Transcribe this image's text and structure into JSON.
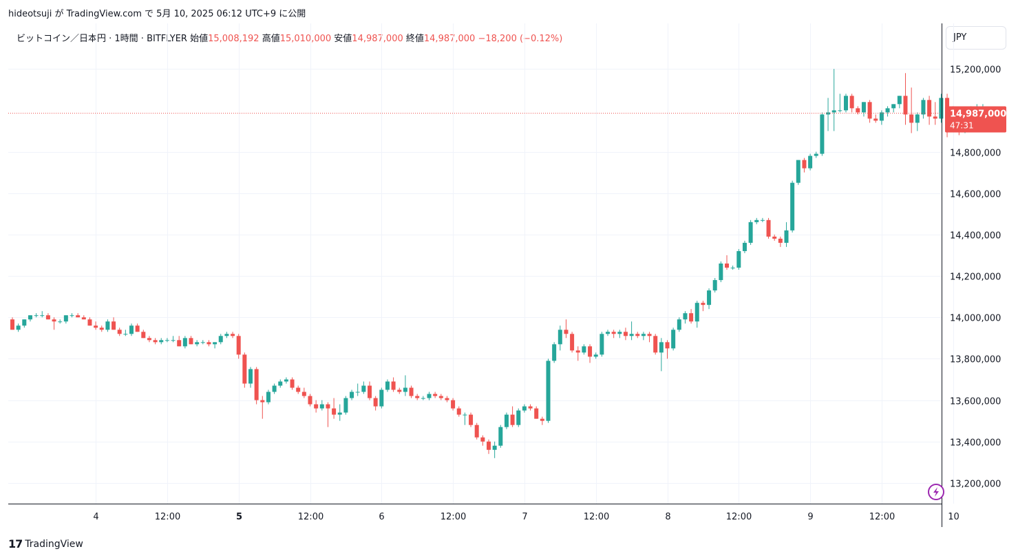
{
  "header": {
    "published_line": "hideotsuji が TradingView.com で 5月 10, 2025 06:12 UTC+9 に公開"
  },
  "legend": {
    "symbol": "ビットコイン／日本円 · 1時間 · BITFLYER",
    "open_label": "始値",
    "open_value": "15,008,192",
    "high_label": "高値",
    "high_value": "15,010,000",
    "low_label": "安値",
    "low_value": "14,987,000",
    "close_label": "終値",
    "close_value": "14,987,000",
    "change": "−18,200 (−0.12%)"
  },
  "currency_button": "JPY",
  "price_badge": {
    "price": "14,987,000",
    "countdown": "47:31"
  },
  "footer": {
    "logo": "17",
    "brand": "TradingView"
  },
  "colors": {
    "up": "#26a69a",
    "down": "#ef5350",
    "grid": "#f0f3fa",
    "axis": "#131722"
  },
  "chart_data": {
    "type": "candlestick",
    "y_ticks": [
      "15,200,000",
      "14,800,000",
      "14,600,000",
      "14,400,000",
      "14,200,000",
      "14,000,000",
      "13,800,000",
      "13,600,000",
      "13,400,000",
      "13,200,000"
    ],
    "y_tick_values": [
      15200000,
      14800000,
      14600000,
      14400000,
      14200000,
      14000000,
      13800000,
      13600000,
      13400000,
      13200000
    ],
    "ylim": [
      13100000,
      15420000
    ],
    "x_ticks": [
      {
        "label": "4",
        "pos": 14,
        "bold": false
      },
      {
        "label": "12:00",
        "pos": 26,
        "bold": false
      },
      {
        "label": "5",
        "pos": 38,
        "bold": true
      },
      {
        "label": "12:00",
        "pos": 50,
        "bold": false
      },
      {
        "label": "6",
        "pos": 62,
        "bold": false
      },
      {
        "label": "12:00",
        "pos": 74,
        "bold": false
      },
      {
        "label": "7",
        "pos": 86,
        "bold": false
      },
      {
        "label": "12:00",
        "pos": 98,
        "bold": false
      },
      {
        "label": "8",
        "pos": 110,
        "bold": false
      },
      {
        "label": "12:00",
        "pos": 122,
        "bold": false
      },
      {
        "label": "9",
        "pos": 134,
        "bold": false
      },
      {
        "label": "12:00",
        "pos": 146,
        "bold": false
      },
      {
        "label": "10",
        "pos": 158,
        "bold": false
      }
    ],
    "last_price": 14987000,
    "candles": [
      [
        13990000,
        14000000,
        13940000,
        13940000
      ],
      [
        13940000,
        13970000,
        13930000,
        13960000
      ],
      [
        13960000,
        13990000,
        13950000,
        13990000
      ],
      [
        13990000,
        14010000,
        13980000,
        14010000
      ],
      [
        14010000,
        14020000,
        14000000,
        14010000
      ],
      [
        14010000,
        14030000,
        14000000,
        14010000
      ],
      [
        14010000,
        14020000,
        13990000,
        13990000
      ],
      [
        13990000,
        14000000,
        13940000,
        13980000
      ],
      [
        13980000,
        13990000,
        13970000,
        13980000
      ],
      [
        13980000,
        14010000,
        13970000,
        14010000
      ],
      [
        14010000,
        14020000,
        14000000,
        14010000
      ],
      [
        14010000,
        14020000,
        14000000,
        14000000
      ],
      [
        14000000,
        14010000,
        13990000,
        13990000
      ],
      [
        13990000,
        14000000,
        13960000,
        13960000
      ],
      [
        13960000,
        13980000,
        13940000,
        13950000
      ],
      [
        13950000,
        13960000,
        13930000,
        13940000
      ],
      [
        13940000,
        13990000,
        13930000,
        13980000
      ],
      [
        13980000,
        14000000,
        13940000,
        13940000
      ],
      [
        13940000,
        13950000,
        13910000,
        13920000
      ],
      [
        13920000,
        13940000,
        13910000,
        13920000
      ],
      [
        13920000,
        13970000,
        13910000,
        13960000
      ],
      [
        13960000,
        13970000,
        13930000,
        13930000
      ],
      [
        13930000,
        13940000,
        13900000,
        13900000
      ],
      [
        13900000,
        13910000,
        13880000,
        13890000
      ],
      [
        13890000,
        13900000,
        13870000,
        13880000
      ],
      [
        13880000,
        13900000,
        13870000,
        13890000
      ],
      [
        13890000,
        13900000,
        13880000,
        13890000
      ],
      [
        13890000,
        13910000,
        13880000,
        13890000
      ],
      [
        13890000,
        13910000,
        13860000,
        13860000
      ],
      [
        13860000,
        13910000,
        13850000,
        13900000
      ],
      [
        13900000,
        13910000,
        13870000,
        13870000
      ],
      [
        13870000,
        13890000,
        13860000,
        13880000
      ],
      [
        13880000,
        13890000,
        13870000,
        13880000
      ],
      [
        13880000,
        13890000,
        13860000,
        13870000
      ],
      [
        13870000,
        13880000,
        13850000,
        13880000
      ],
      [
        13880000,
        13920000,
        13870000,
        13910000
      ],
      [
        13910000,
        13930000,
        13900000,
        13920000
      ],
      [
        13920000,
        13930000,
        13900000,
        13910000
      ],
      [
        13910000,
        13920000,
        13800000,
        13820000
      ],
      [
        13820000,
        13830000,
        13660000,
        13680000
      ],
      [
        13680000,
        13760000,
        13660000,
        13750000
      ],
      [
        13750000,
        13760000,
        13580000,
        13600000
      ],
      [
        13600000,
        13620000,
        13510000,
        13590000
      ],
      [
        13590000,
        13650000,
        13580000,
        13640000
      ],
      [
        13640000,
        13680000,
        13630000,
        13670000
      ],
      [
        13670000,
        13700000,
        13660000,
        13690000
      ],
      [
        13690000,
        13710000,
        13680000,
        13700000
      ],
      [
        13700000,
        13710000,
        13650000,
        13660000
      ],
      [
        13660000,
        13670000,
        13630000,
        13640000
      ],
      [
        13640000,
        13660000,
        13610000,
        13620000
      ],
      [
        13620000,
        13630000,
        13570000,
        13580000
      ],
      [
        13580000,
        13600000,
        13540000,
        13560000
      ],
      [
        13560000,
        13600000,
        13550000,
        13580000
      ],
      [
        13580000,
        13590000,
        13470000,
        13560000
      ],
      [
        13560000,
        13610000,
        13510000,
        13530000
      ],
      [
        13530000,
        13580000,
        13500000,
        13540000
      ],
      [
        13540000,
        13620000,
        13530000,
        13610000
      ],
      [
        13610000,
        13650000,
        13600000,
        13640000
      ],
      [
        13640000,
        13680000,
        13620000,
        13640000
      ],
      [
        13640000,
        13690000,
        13630000,
        13670000
      ],
      [
        13670000,
        13690000,
        13600000,
        13610000
      ],
      [
        13610000,
        13620000,
        13550000,
        13570000
      ],
      [
        13570000,
        13660000,
        13560000,
        13650000
      ],
      [
        13650000,
        13700000,
        13640000,
        13690000
      ],
      [
        13690000,
        13710000,
        13640000,
        13650000
      ],
      [
        13650000,
        13660000,
        13630000,
        13640000
      ],
      [
        13640000,
        13720000,
        13620000,
        13660000
      ],
      [
        13660000,
        13670000,
        13610000,
        13620000
      ],
      [
        13620000,
        13630000,
        13600000,
        13610000
      ],
      [
        13610000,
        13620000,
        13600000,
        13610000
      ],
      [
        13610000,
        13640000,
        13600000,
        13630000
      ],
      [
        13630000,
        13640000,
        13610000,
        13620000
      ],
      [
        13620000,
        13630000,
        13600000,
        13610000
      ],
      [
        13610000,
        13620000,
        13590000,
        13600000
      ],
      [
        13600000,
        13610000,
        13550000,
        13560000
      ],
      [
        13560000,
        13570000,
        13520000,
        13530000
      ],
      [
        13530000,
        13540000,
        13480000,
        13530000
      ],
      [
        13530000,
        13540000,
        13470000,
        13480000
      ],
      [
        13480000,
        13490000,
        13410000,
        13420000
      ],
      [
        13420000,
        13430000,
        13380000,
        13400000
      ],
      [
        13400000,
        13410000,
        13340000,
        13360000
      ],
      [
        13360000,
        13400000,
        13320000,
        13380000
      ],
      [
        13380000,
        13480000,
        13370000,
        13470000
      ],
      [
        13470000,
        13540000,
        13460000,
        13530000
      ],
      [
        13530000,
        13570000,
        13470000,
        13480000
      ],
      [
        13480000,
        13560000,
        13470000,
        13550000
      ],
      [
        13550000,
        13580000,
        13540000,
        13570000
      ],
      [
        13570000,
        13580000,
        13550000,
        13560000
      ],
      [
        13560000,
        13570000,
        13510000,
        13510000
      ],
      [
        13510000,
        13520000,
        13480000,
        13500000
      ],
      [
        13500000,
        13800000,
        13490000,
        13790000
      ],
      [
        13790000,
        13880000,
        13780000,
        13870000
      ],
      [
        13870000,
        13960000,
        13840000,
        13940000
      ],
      [
        13940000,
        13990000,
        13900000,
        13920000
      ],
      [
        13920000,
        13930000,
        13830000,
        13840000
      ],
      [
        13840000,
        13860000,
        13790000,
        13830000
      ],
      [
        13830000,
        13870000,
        13820000,
        13860000
      ],
      [
        13860000,
        13870000,
        13780000,
        13810000
      ],
      [
        13810000,
        13830000,
        13800000,
        13820000
      ],
      [
        13820000,
        13930000,
        13810000,
        13920000
      ],
      [
        13920000,
        13940000,
        13910000,
        13930000
      ],
      [
        13930000,
        13940000,
        13900000,
        13920000
      ],
      [
        13920000,
        13940000,
        13900000,
        13930000
      ],
      [
        13930000,
        13950000,
        13890000,
        13910000
      ],
      [
        13910000,
        13980000,
        13890000,
        13920000
      ],
      [
        13920000,
        13930000,
        13900000,
        13910000
      ],
      [
        13910000,
        13930000,
        13890000,
        13920000
      ],
      [
        13920000,
        13930000,
        13880000,
        13910000
      ],
      [
        13910000,
        13920000,
        13820000,
        13830000
      ],
      [
        13830000,
        13900000,
        13740000,
        13880000
      ],
      [
        13880000,
        13890000,
        13800000,
        13850000
      ],
      [
        13850000,
        13950000,
        13840000,
        13940000
      ],
      [
        13940000,
        14000000,
        13930000,
        13990000
      ],
      [
        13990000,
        14030000,
        13970000,
        14020000
      ],
      [
        14020000,
        14040000,
        13970000,
        13980000
      ],
      [
        13980000,
        14080000,
        13950000,
        14070000
      ],
      [
        14070000,
        14080000,
        14030000,
        14060000
      ],
      [
        14060000,
        14140000,
        14040000,
        14130000
      ],
      [
        14130000,
        14190000,
        14120000,
        14180000
      ],
      [
        14180000,
        14270000,
        14170000,
        14260000
      ],
      [
        14260000,
        14300000,
        14230000,
        14240000
      ],
      [
        14240000,
        14250000,
        14230000,
        14240000
      ],
      [
        14240000,
        14330000,
        14230000,
        14320000
      ],
      [
        14320000,
        14370000,
        14310000,
        14360000
      ],
      [
        14360000,
        14470000,
        14350000,
        14460000
      ],
      [
        14460000,
        14480000,
        14450000,
        14470000
      ],
      [
        14470000,
        14480000,
        14460000,
        14470000
      ],
      [
        14470000,
        14480000,
        14380000,
        14390000
      ],
      [
        14390000,
        14400000,
        14370000,
        14380000
      ],
      [
        14380000,
        14390000,
        14340000,
        14360000
      ],
      [
        14360000,
        14460000,
        14340000,
        14420000
      ],
      [
        14420000,
        14660000,
        14410000,
        14650000
      ],
      [
        14650000,
        14760000,
        14640000,
        14760000
      ],
      [
        14760000,
        14770000,
        14700000,
        14720000
      ],
      [
        14720000,
        14790000,
        14710000,
        14780000
      ],
      [
        14780000,
        14800000,
        14770000,
        14790000
      ],
      [
        14790000,
        14990000,
        14780000,
        14980000
      ],
      [
        14980000,
        15060000,
        14900000,
        14990000
      ],
      [
        14990000,
        15200000,
        14900000,
        15000000
      ],
      [
        15000000,
        15080000,
        14990000,
        15000000
      ],
      [
        15000000,
        15080000,
        14990000,
        15070000
      ],
      [
        15070000,
        15080000,
        14990000,
        15010000
      ],
      [
        15010000,
        15020000,
        14980000,
        14990000
      ],
      [
        14990000,
        15040000,
        14970000,
        15040000
      ],
      [
        15040000,
        15050000,
        14940000,
        14960000
      ],
      [
        14960000,
        14980000,
        14940000,
        14950000
      ],
      [
        14950000,
        15000000,
        14930000,
        14990000
      ],
      [
        14990000,
        15020000,
        14970000,
        15010000
      ],
      [
        15010000,
        15030000,
        14990000,
        15030000
      ],
      [
        15030000,
        15070000,
        15010000,
        15070000
      ],
      [
        15070000,
        15180000,
        14930000,
        14980000
      ],
      [
        14980000,
        15110000,
        14890000,
        14940000
      ],
      [
        14940000,
        14990000,
        14900000,
        14980000
      ],
      [
        14980000,
        15060000,
        14960000,
        15050000
      ],
      [
        15050000,
        15070000,
        14930000,
        14970000
      ],
      [
        14970000,
        15040000,
        14930000,
        14960000
      ],
      [
        14960000,
        15080000,
        14940000,
        15060000
      ],
      [
        15060000,
        15080000,
        14870000,
        14980000
      ],
      [
        14980000,
        15020000,
        14930000,
        14960000
      ],
      [
        14960000,
        14970000,
        14880000,
        14910000
      ],
      [
        14910000,
        15000000,
        14890000,
        14990000
      ],
      [
        14990000,
        15020000,
        14970000,
        15010000
      ],
      [
        15010000,
        15030000,
        14990000,
        15010000
      ],
      [
        15010000,
        15030000,
        15000000,
        15010000
      ],
      [
        15008192,
        15010000,
        14987000,
        14987000
      ]
    ]
  }
}
